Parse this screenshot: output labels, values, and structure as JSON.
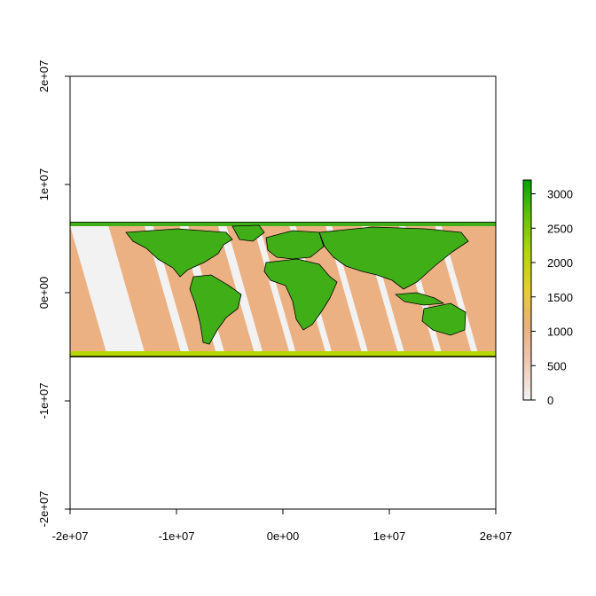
{
  "chart_data": {
    "type": "heatmap",
    "title": "",
    "xlabel": "",
    "ylabel": "",
    "xlim": [
      -20000000,
      20000000
    ],
    "ylim": [
      -20000000,
      20000000
    ],
    "x_ticks": [
      {
        "value": -20000000,
        "label": "-2e+07"
      },
      {
        "value": -10000000,
        "label": "-1e+07"
      },
      {
        "value": 0,
        "label": "0e+00"
      },
      {
        "value": 10000000,
        "label": "1e+07"
      },
      {
        "value": 20000000,
        "label": "2e+07"
      }
    ],
    "y_ticks": [
      {
        "value": -20000000,
        "label": "-2e+07"
      },
      {
        "value": -10000000,
        "label": "-1e+07"
      },
      {
        "value": 0,
        "label": "0e+00"
      },
      {
        "value": 10000000,
        "label": "1e+07"
      },
      {
        "value": 20000000,
        "label": "2e+07"
      }
    ],
    "raster_extent": {
      "xmin": -20000000,
      "xmax": 20000000,
      "ymin": -6300000,
      "ymax": 6300000
    },
    "legend": {
      "position": "right",
      "range": [
        0,
        3200
      ],
      "ticks": [
        {
          "value": 0,
          "label": "0"
        },
        {
          "value": 500,
          "label": "500"
        },
        {
          "value": 1000,
          "label": "1000"
        },
        {
          "value": 1500,
          "label": "1500"
        },
        {
          "value": 2000,
          "label": "2000"
        },
        {
          "value": 2500,
          "label": "2500"
        },
        {
          "value": 3000,
          "label": "3000"
        }
      ],
      "colors": [
        "#f2f2f2",
        "#eec9b5",
        "#e9b07f",
        "#e6cf2a",
        "#b5d800",
        "#66c400",
        "#00a600"
      ]
    },
    "no_data_color": "#f2f2f2",
    "swath_color": "#ecb183",
    "land_color": "#3fae17",
    "grid": false
  }
}
